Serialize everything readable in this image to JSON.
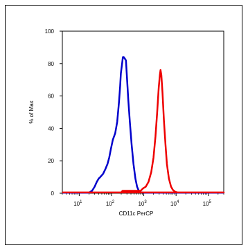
{
  "chart_data": {
    "type": "line",
    "title": "",
    "xlabel": "CD11c PerCP",
    "ylabel": "% of Max",
    "xscale": "log",
    "xlim": [
      3,
      300000
    ],
    "ylim": [
      0,
      100
    ],
    "x_ticks": [
      {
        "base": "10",
        "exp": "1",
        "value": 10
      },
      {
        "base": "10",
        "exp": "2",
        "value": 100
      },
      {
        "base": "10",
        "exp": "3",
        "value": 1000
      },
      {
        "base": "10",
        "exp": "4",
        "value": 10000
      },
      {
        "base": "10",
        "exp": "5",
        "value": 100000
      }
    ],
    "y_ticks": [
      "0",
      "20",
      "40",
      "60",
      "80",
      "100"
    ],
    "grid": false,
    "legend": "none",
    "series": [
      {
        "color": "#0000cc",
        "points": [
          [
            3,
            0.3
          ],
          [
            20,
            0.3
          ],
          [
            25,
            1.5
          ],
          [
            30,
            4
          ],
          [
            35,
            7
          ],
          [
            40,
            9
          ],
          [
            45,
            10
          ],
          [
            55,
            12
          ],
          [
            65,
            15
          ],
          [
            75,
            18
          ],
          [
            85,
            22
          ],
          [
            95,
            27
          ],
          [
            110,
            33
          ],
          [
            130,
            37
          ],
          [
            150,
            44
          ],
          [
            170,
            56
          ],
          [
            185,
            66
          ],
          [
            195,
            74
          ],
          [
            210,
            79
          ],
          [
            225,
            84
          ],
          [
            240,
            84
          ],
          [
            260,
            83
          ],
          [
            280,
            82
          ],
          [
            300,
            72
          ],
          [
            330,
            58
          ],
          [
            370,
            44
          ],
          [
            420,
            30
          ],
          [
            480,
            18
          ],
          [
            550,
            9
          ],
          [
            620,
            4
          ],
          [
            700,
            1.5
          ],
          [
            800,
            0.6
          ],
          [
            1000,
            0.3
          ],
          [
            300000,
            0.3
          ]
        ]
      },
      {
        "color": "#ee0000",
        "points": [
          [
            3,
            0.5
          ],
          [
            300000,
            0.5
          ],
          [
            10,
            0.5
          ],
          [
            200,
            0.5
          ],
          [
            220,
            1.5
          ],
          [
            600,
            1.5
          ],
          [
            800,
            1.5
          ],
          [
            950,
            3
          ],
          [
            1150,
            4
          ],
          [
            1400,
            7
          ],
          [
            1700,
            13
          ],
          [
            2000,
            22
          ],
          [
            2300,
            35
          ],
          [
            2600,
            50
          ],
          [
            2900,
            65
          ],
          [
            3150,
            73
          ],
          [
            3300,
            76
          ],
          [
            3500,
            73
          ],
          [
            3800,
            62
          ],
          [
            4200,
            45
          ],
          [
            4700,
            30
          ],
          [
            5200,
            18
          ],
          [
            6000,
            9
          ],
          [
            7000,
            4
          ],
          [
            8000,
            2
          ],
          [
            9500,
            0.8
          ],
          [
            11000,
            0.5
          ]
        ]
      }
    ]
  }
}
